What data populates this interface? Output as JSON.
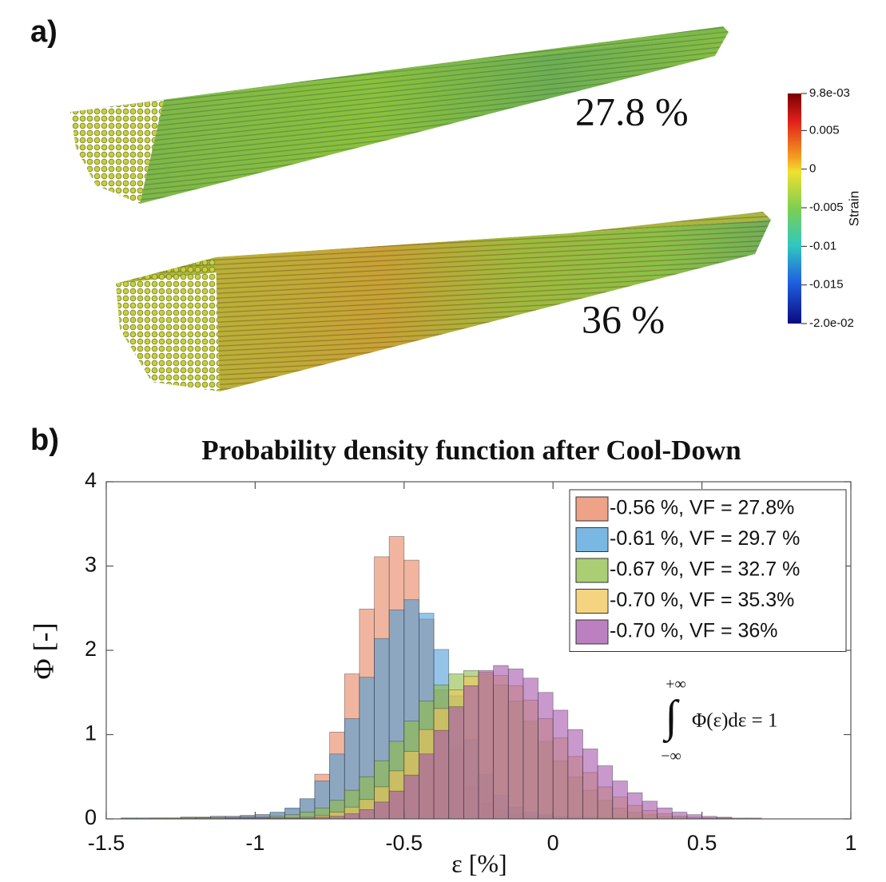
{
  "panel_a": {
    "label": "a)",
    "annotations": [
      "27.8 %",
      "36 %"
    ],
    "colorbar": {
      "title": "Strain",
      "clim": [
        -0.02,
        0.0098
      ],
      "ticks": [
        {
          "value": 0.0098,
          "label": "9.8e-03"
        },
        0.005,
        0,
        -0.005,
        -0.01,
        -0.015,
        {
          "value": -0.02,
          "label": "-2.0e-02"
        }
      ]
    }
  },
  "panel_b": {
    "label": "b)"
  },
  "chart_data": {
    "type": "histogram",
    "title": "Probability density function after Cool-Down",
    "xlabel": "ε [%]",
    "ylabel": "Φ [-]",
    "xlim": [
      -1.5,
      1
    ],
    "ylim": [
      0,
      4
    ],
    "xticks": [
      -1.5,
      -1,
      -0.5,
      0,
      0.5,
      1
    ],
    "yticks": [
      0,
      1,
      2,
      3,
      4
    ],
    "grid": false,
    "legend": "upper right",
    "annotation": {
      "upper": "+∞",
      "integral": "∫",
      "expression": "Φ(ε)dε = 1",
      "lower": "−∞"
    },
    "bins": [
      -1.5,
      -1.45,
      -1.4,
      -1.35,
      -1.3,
      -1.25,
      -1.2,
      -1.15,
      -1.1,
      -1.05,
      -1,
      -0.95,
      -0.9,
      -0.85,
      -0.8,
      -0.75,
      -0.7,
      -0.65,
      -0.6,
      -0.55,
      -0.5,
      -0.45,
      -0.4,
      -0.35,
      -0.3,
      -0.25,
      -0.2,
      -0.15,
      -0.1,
      -0.05,
      0,
      0.05,
      0.1,
      0.15,
      0.2,
      0.25,
      0.3,
      0.35,
      0.4,
      0.45,
      0.5,
      0.55,
      0.6,
      0.65,
      0.7,
      0.75,
      0.8,
      0.85,
      0.9,
      0.95,
      1
    ],
    "series": [
      {
        "name": "-0.56 %, VF = 27.8%",
        "color": "#e8835f",
        "values": [
          0,
          0.01,
          0.01,
          0.01,
          0.01,
          0.02,
          0.02,
          0.03,
          0.03,
          0.04,
          0.05,
          0.07,
          0.12,
          0.23,
          0.53,
          1.03,
          1.72,
          2.49,
          3.11,
          3.35,
          3.07,
          2.37,
          1.53,
          0.83,
          0.38,
          0.18,
          0.1,
          0.06,
          0.04,
          0.03,
          0.02,
          0.01,
          0.01,
          0.01,
          0.01,
          0.01,
          0,
          0,
          0,
          0,
          0,
          0,
          0,
          0,
          0,
          0,
          0,
          0,
          0,
          0
        ]
      },
      {
        "name": "-0.61 %, VF = 29.7 %",
        "color": "#4d9fd8",
        "values": [
          0,
          0.01,
          0.01,
          0.01,
          0.01,
          0.02,
          0.02,
          0.03,
          0.03,
          0.04,
          0.05,
          0.08,
          0.13,
          0.24,
          0.45,
          0.77,
          1.19,
          1.68,
          2.14,
          2.48,
          2.6,
          2.44,
          2.01,
          1.46,
          0.94,
          0.53,
          0.28,
          0.14,
          0.08,
          0.05,
          0.03,
          0.02,
          0.02,
          0.01,
          0.01,
          0.01,
          0,
          0,
          0,
          0,
          0,
          0,
          0,
          0,
          0,
          0,
          0,
          0,
          0,
          0
        ]
      },
      {
        "name": "-0.67 %, VF = 32.7 %",
        "color": "#8dbd45",
        "values": [
          0,
          0,
          0,
          0.01,
          0.01,
          0.01,
          0.01,
          0.01,
          0.01,
          0.02,
          0.02,
          0.03,
          0.05,
          0.08,
          0.13,
          0.22,
          0.34,
          0.5,
          0.69,
          0.92,
          1.16,
          1.4,
          1.59,
          1.72,
          1.76,
          1.72,
          1.59,
          1.4,
          1.16,
          0.92,
          0.69,
          0.5,
          0.34,
          0.22,
          0.13,
          0.08,
          0.05,
          0.03,
          0.02,
          0.01,
          0.01,
          0.01,
          0,
          0,
          0,
          0,
          0,
          0,
          0,
          0
        ]
      },
      {
        "name": "-0.70 %, VF = 35.3%",
        "color": "#f0c557",
        "values": [
          0,
          0,
          0,
          0,
          0,
          0,
          0.01,
          0.01,
          0.01,
          0.01,
          0.01,
          0.01,
          0.01,
          0.02,
          0.04,
          0.08,
          0.14,
          0.23,
          0.38,
          0.57,
          0.8,
          1.06,
          1.31,
          1.53,
          1.69,
          1.74,
          1.7,
          1.58,
          1.41,
          1.19,
          0.96,
          0.74,
          0.55,
          0.38,
          0.26,
          0.16,
          0.1,
          0.06,
          0.03,
          0.02,
          0.01,
          0.01,
          0,
          0,
          0,
          0,
          0,
          0,
          0,
          0
        ]
      },
      {
        "name": "-0.70 %, VF = 36%",
        "color": "#a555ab",
        "values": [
          0,
          0,
          0,
          0,
          0,
          0,
          0,
          0,
          0.01,
          0.01,
          0.01,
          0.01,
          0.01,
          0.01,
          0.02,
          0.03,
          0.06,
          0.11,
          0.2,
          0.33,
          0.52,
          0.77,
          1.05,
          1.33,
          1.58,
          1.76,
          1.82,
          1.78,
          1.67,
          1.5,
          1.29,
          1.06,
          0.83,
          0.63,
          0.45,
          0.31,
          0.21,
          0.13,
          0.08,
          0.05,
          0.03,
          0.02,
          0.01,
          0.01,
          0,
          0,
          0,
          0,
          0,
          0
        ]
      }
    ]
  }
}
